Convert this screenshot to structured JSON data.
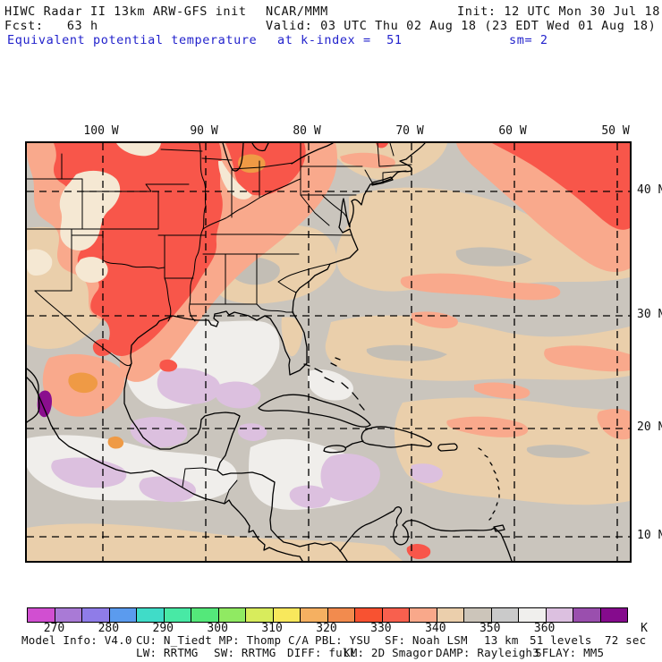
{
  "header": {
    "model_title": "HIWC Radar II 13km ARW-GFS init",
    "center": "NCAR/MMM",
    "init": "Init: 12 UTC Mon 30 Jul 18",
    "fcst": "Fcst:   63 h",
    "valid": "Valid: 03 UTC Thu 02 Aug 18 (23 EDT Wed 01 Aug 18)",
    "field": "Equivalent potential temperature",
    "level": "at k-index =  51",
    "smoothing": "sm= 2",
    "accent_color": "#2222cc"
  },
  "map": {
    "lon_labels": [
      "100 W",
      "90 W",
      "80 W",
      "70 W",
      "60 W",
      "50 W"
    ],
    "lat_labels": [
      "40 N",
      "30 N",
      "20 N",
      "10 N"
    ]
  },
  "colorbar": {
    "unit": "K",
    "tick_labels": [
      "270",
      "280",
      "290",
      "300",
      "310",
      "320",
      "330",
      "340",
      "350",
      "360"
    ],
    "colors": [
      "#d14fd1",
      "#a97ad6",
      "#8f7ce8",
      "#5b9bee",
      "#40dcc8",
      "#48e9a5",
      "#54e87a",
      "#90ea62",
      "#d8ec5c",
      "#f8e85c",
      "#f5b061",
      "#f28b4e",
      "#f85231",
      "#f8604e",
      "#f9a88a",
      "#ebcfac",
      "#ccc5ba",
      "#cacaca",
      "#f0efed",
      "#dcc0e0",
      "#9a4fae",
      "#850b8d"
    ]
  },
  "footer": {
    "model_info": "Model Info: V4.0",
    "cu": "CU: N_Tiedt MP: Thomp C/A",
    "pbl": "PBL: YSU",
    "sf": "SF: Noah LSM",
    "res": "13 km",
    "levels": "51 levels",
    "timestep": "72 sec",
    "lw": "LW: RRTMG",
    "sw": "SW: RRTMG",
    "diff": "DIFF: full",
    "km": "KM: 2D Smagor",
    "damp": "DAMP: Rayleigh3",
    "sflay": "SFLAY: MM5"
  },
  "chart_data": {
    "type": "heatmap",
    "title": "Equivalent potential temperature at k-index = 51",
    "units": "K",
    "init_time": "12 UTC Mon 30 Jul 18",
    "valid_time": "03 UTC Thu 02 Aug 18 (23 EDT Wed 01 Aug 18)",
    "forecast_hour": 63,
    "smoothing_passes": 2,
    "scale_ticks": [
      270,
      280,
      290,
      300,
      310,
      320,
      330,
      340,
      350,
      360
    ],
    "scale_bin_width_K": 5,
    "scale_range_K": [
      265,
      375
    ],
    "scale_colors": [
      "#d14fd1",
      "#a97ad6",
      "#8f7ce8",
      "#5b9bee",
      "#40dcc8",
      "#48e9a5",
      "#54e87a",
      "#90ea62",
      "#d8ec5c",
      "#f8e85c",
      "#f5b061",
      "#f28b4e",
      "#f85231",
      "#f8604e",
      "#f9a88a",
      "#ebcfac",
      "#ccc5ba",
      "#cacaca",
      "#f0efed",
      "#dcc0e0",
      "#9a4fae",
      "#850b8d"
    ],
    "map_extent": {
      "lon_W": [
        107.4,
        48.8
      ],
      "lat_N": [
        7.8,
        43.9
      ]
    },
    "grid_lines": {
      "lon_W": [
        100,
        90,
        80,
        70,
        60,
        50
      ],
      "lat_N": [
        40,
        30,
        20,
        10
      ]
    },
    "features": [
      {
        "region": "Central Plains / Midwest US (KS-OK-MO-IL-IN)",
        "theta_e_K": "330-335 (red maximum)"
      },
      {
        "region": "Ring around Midwest maximum and NE US coast",
        "theta_e_K": "335-340 (salmon)"
      },
      {
        "region": "Upper-left interior patches (NE/IA)",
        "theta_e_K": "340-345 (cream/tan)"
      },
      {
        "region": "Northeast Atlantic corner (50-60W, 35-43N)",
        "theta_e_K": "325-340 (red/salmon)"
      },
      {
        "region": "Western Atlantic / SE US",
        "theta_e_K": "340-355 (tan/gray swirls)"
      },
      {
        "region": "Gulf of Mexico and western Caribbean",
        "theta_e_K": "355-360 (white)"
      },
      {
        "region": "Caribbean / eastern Pacific patches",
        "theta_e_K": "360-365 (lavender)"
      },
      {
        "region": "Near Baja California tip",
        "theta_e_K": "370-375 (dark purple spot)"
      },
      {
        "region": "Northern Mexico interior",
        "theta_e_K": "315-340 (orange/salmon)"
      },
      {
        "region": "Northern Venezuela spot",
        "theta_e_K": "330-335 (red)"
      }
    ]
  }
}
